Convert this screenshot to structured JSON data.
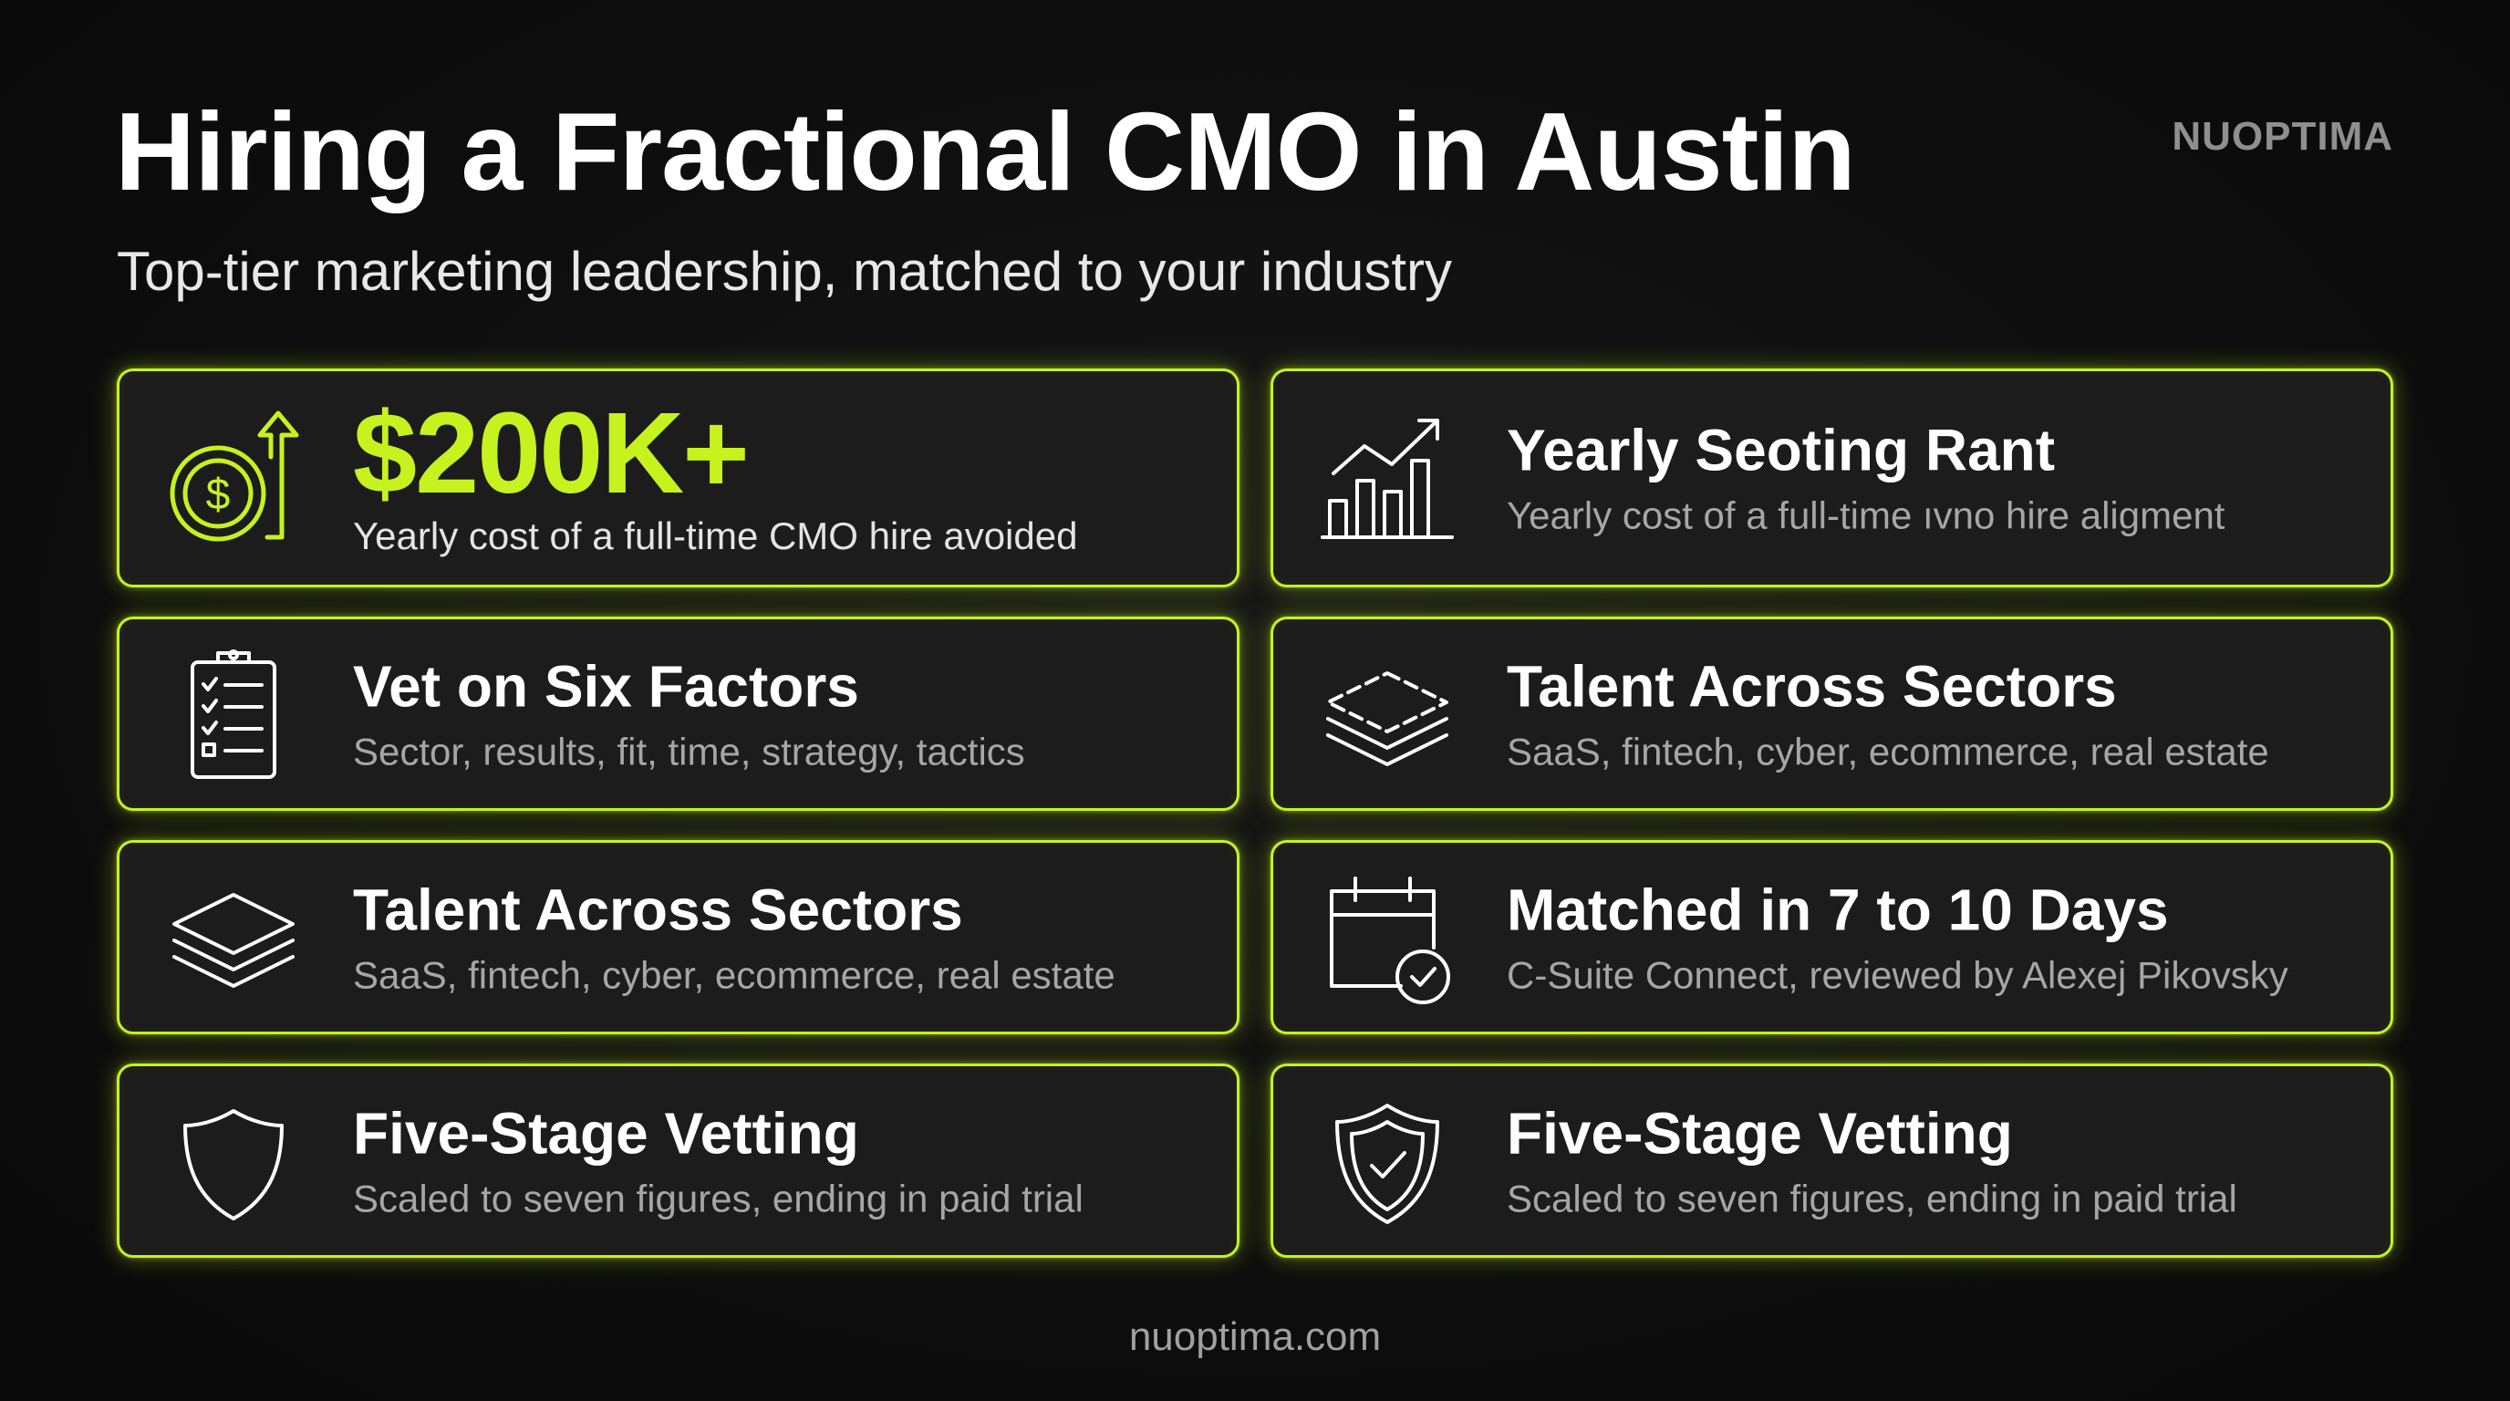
{
  "title": "Hiring a Fractional CMO in Austin",
  "subtitle": "Top-tier marketing leadership, matched to your industry",
  "brand": "NUOPTIMA",
  "accent_color": "#c6f21d",
  "cards": [
    {
      "icon": "dollar-coin-arrow-icon",
      "headline": "$200K+",
      "description": "Yearly cost of a full-time CMO hire avoided"
    },
    {
      "icon": "growth-chart-icon",
      "headline": "Yearly Seoting Rant",
      "description": "Yearly cost of a full-time ıvno hire aligment"
    },
    {
      "icon": "checklist-clipboard-icon",
      "headline": "Vet on Six Factors",
      "description": "Sector, results, fit, time, strategy, tactics"
    },
    {
      "icon": "layers-dashed-icon",
      "headline": "Talent Across Sectors",
      "description": "SaaS, fintech, cyber, ecommerce, real estate"
    },
    {
      "icon": "layers-stack-icon",
      "headline": "Talent Across Sectors",
      "description": "SaaS, fintech, cyber, ecommerce, real estate"
    },
    {
      "icon": "calendar-check-icon",
      "headline": "Matched in 7 to 10 Days",
      "description": "C-Suite Connect, reviewed by Alexej Pikovsky"
    },
    {
      "icon": "shield-icon",
      "headline": "Five-Stage Vetting",
      "description": "Scaled to seven figures, ending in paid trial"
    },
    {
      "icon": "shield-check-icon",
      "headline": "Five-Stage Vetting",
      "description": "Scaled to seven figures, ending in paid trial"
    }
  ],
  "footer": "nuoptima.com"
}
